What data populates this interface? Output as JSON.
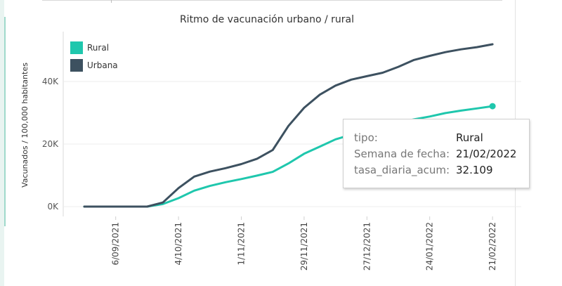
{
  "chart_data": {
    "type": "line",
    "title": "Ritmo de vacunación urbano / rural",
    "xlabel": "",
    "ylabel": "Vacunados / 100,000 habitantes",
    "x_tick_labels": [
      "6/09/2021",
      "4/10/2021",
      "1/11/2021",
      "29/11/2021",
      "27/12/2021",
      "24/01/2022",
      "21/02/2022"
    ],
    "y_tick_labels": [
      "0K",
      "20K",
      "40K"
    ],
    "ylim": [
      0,
      55000
    ],
    "grid": true,
    "legend_position": "top-left",
    "x": [
      "23/08/2021",
      "30/08/2021",
      "6/09/2021",
      "13/09/2021",
      "20/09/2021",
      "27/09/2021",
      "4/10/2021",
      "11/10/2021",
      "18/10/2021",
      "25/10/2021",
      "1/11/2021",
      "8/11/2021",
      "15/11/2021",
      "22/11/2021",
      "29/11/2021",
      "6/12/2021",
      "13/12/2021",
      "20/12/2021",
      "27/12/2021",
      "3/01/2022",
      "10/01/2022",
      "17/01/2022",
      "24/01/2022",
      "31/01/2022",
      "7/02/2022",
      "14/02/2022",
      "21/02/2022"
    ],
    "series": [
      {
        "name": "Rural",
        "color": "#1fc7ad",
        "values": [
          0,
          0,
          0,
          0,
          0,
          800,
          2700,
          5100,
          6600,
          7800,
          8800,
          9900,
          11100,
          13800,
          16900,
          19200,
          21500,
          23000,
          24500,
          25600,
          26800,
          27900,
          28800,
          29900,
          30700,
          31400,
          32109
        ]
      },
      {
        "name": "Urbana",
        "color": "#3d5160",
        "values": [
          0,
          0,
          0,
          0,
          0,
          1300,
          5900,
          9600,
          11200,
          12300,
          13600,
          15300,
          18100,
          25800,
          31600,
          35800,
          38700,
          40600,
          41700,
          42800,
          44700,
          46900,
          48200,
          49400,
          50300,
          51000,
          51900
        ]
      }
    ]
  },
  "tooltip": {
    "rows": [
      {
        "key": "tipo:",
        "value": "Rural"
      },
      {
        "key": "Semana de fecha:",
        "value": "21/02/2022"
      },
      {
        "key": "tasa_diaria_acum:",
        "value": "32.109"
      }
    ]
  }
}
